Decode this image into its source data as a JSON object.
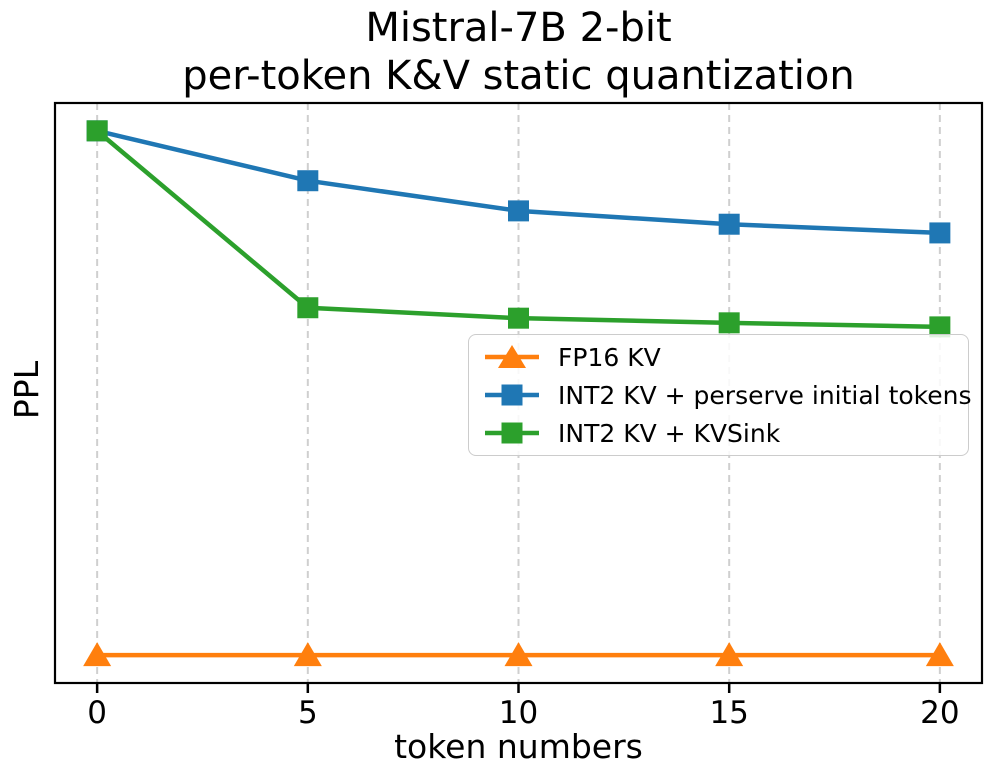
{
  "title": {
    "line1": "Mistral-7B 2-bit",
    "line2": "per-token K&V static quantization"
  },
  "axes": {
    "x_label": "token numbers",
    "y_label": "PPL",
    "x_ticks": [
      0,
      5,
      10,
      15,
      20
    ],
    "xlim": [
      -1,
      21
    ],
    "y_tick_labels_shown": false,
    "grid": "vertical-dashed"
  },
  "chart_data": {
    "type": "line",
    "title": "Mistral-7B 2-bit per-token K&V static quantization",
    "xlabel": "token numbers",
    "ylabel": "PPL",
    "x": [
      0,
      5,
      10,
      15,
      20
    ],
    "y_axis_note": "y-axis has no tick labels; y_frac are relative heights read from pixels (0 = bottom axis, 1 = top axis)",
    "series": [
      {
        "name": "FP16 KV",
        "color": "#ff7f0e",
        "marker": "triangle",
        "y_frac": [
          0.048,
          0.048,
          0.048,
          0.048,
          0.048
        ]
      },
      {
        "name": "INT2 KV + perserve initial tokens",
        "color": "#1f77b4",
        "marker": "square",
        "y_frac": [
          0.952,
          0.866,
          0.814,
          0.791,
          0.776
        ]
      },
      {
        "name": "INT2 KV + KVSink",
        "color": "#2ca02c",
        "marker": "square",
        "y_frac": [
          0.952,
          0.647,
          0.629,
          0.621,
          0.614
        ]
      }
    ],
    "legend_position": "center-right",
    "legend_entries": [
      "FP16 KV",
      "INT2 KV + perserve initial tokens",
      "INT2 KV + KVSink"
    ]
  },
  "colors": {
    "grid": "#cfcfcf",
    "spine": "#000000",
    "background": "#ffffff",
    "legend_border": "#cccccc"
  }
}
